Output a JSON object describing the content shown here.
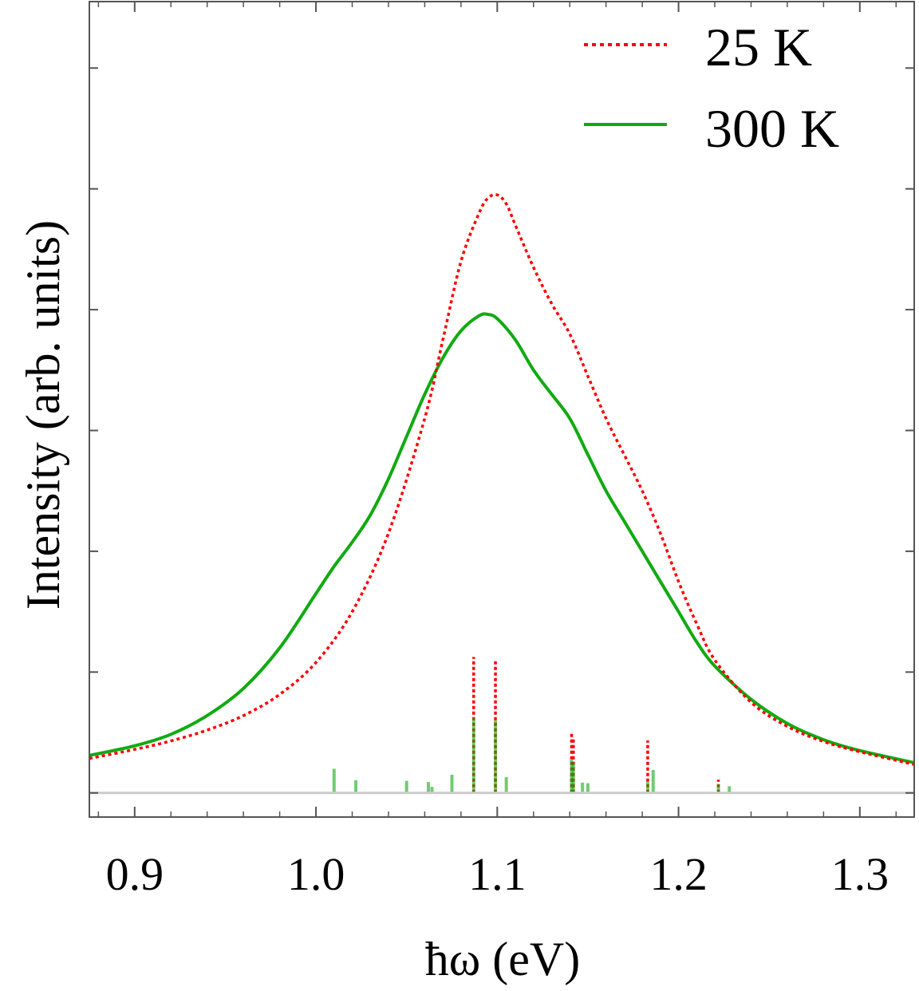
{
  "chart_data": {
    "type": "line",
    "title": "",
    "xlabel": "ħω (eV)",
    "ylabel": "Intensity (arb. units)",
    "xlim": [
      0.875,
      1.33
    ],
    "ylim": [
      -0.04,
      1.31
    ],
    "x_ticks": [
      0.9,
      1.0,
      1.1,
      1.2,
      1.3
    ],
    "x_tick_labels": [
      "0.9",
      "1.0",
      "1.1",
      "1.2",
      "1.3"
    ],
    "legend_position": "top-right",
    "series": [
      {
        "name": "25 K",
        "color": "#ff0000",
        "style": "dotted",
        "x": [
          0.875,
          0.9,
          0.92,
          0.94,
          0.96,
          0.98,
          1.0,
          1.02,
          1.04,
          1.06,
          1.07,
          1.08,
          1.09,
          1.095,
          1.1,
          1.105,
          1.11,
          1.12,
          1.13,
          1.14,
          1.15,
          1.16,
          1.17,
          1.18,
          1.19,
          1.2,
          1.21,
          1.22,
          1.24,
          1.26,
          1.28,
          1.3,
          1.33
        ],
        "values": [
          0.057,
          0.072,
          0.086,
          0.104,
          0.128,
          0.163,
          0.216,
          0.3,
          0.43,
          0.62,
          0.75,
          0.88,
          0.96,
          0.985,
          0.99,
          0.975,
          0.94,
          0.87,
          0.81,
          0.76,
          0.69,
          0.62,
          0.56,
          0.5,
          0.43,
          0.35,
          0.28,
          0.22,
          0.15,
          0.11,
          0.085,
          0.068,
          0.047
        ]
      },
      {
        "name": "300 K",
        "color": "#11aa11",
        "style": "solid",
        "x": [
          0.875,
          0.9,
          0.92,
          0.94,
          0.96,
          0.98,
          1.0,
          1.01,
          1.02,
          1.03,
          1.04,
          1.05,
          1.06,
          1.07,
          1.08,
          1.09,
          1.095,
          1.1,
          1.11,
          1.12,
          1.13,
          1.14,
          1.15,
          1.16,
          1.17,
          1.18,
          1.19,
          1.2,
          1.21,
          1.22,
          1.24,
          1.26,
          1.28,
          1.3,
          1.33
        ],
        "values": [
          0.062,
          0.078,
          0.097,
          0.128,
          0.173,
          0.24,
          0.33,
          0.375,
          0.415,
          0.46,
          0.52,
          0.59,
          0.66,
          0.72,
          0.765,
          0.79,
          0.792,
          0.785,
          0.75,
          0.7,
          0.66,
          0.62,
          0.56,
          0.5,
          0.45,
          0.4,
          0.35,
          0.3,
          0.25,
          0.21,
          0.155,
          0.115,
          0.088,
          0.07,
          0.05
        ]
      }
    ],
    "stick_spectrum": {
      "baseline": 0.0,
      "sticks_25K": [
        {
          "x": 1.087,
          "h": 0.225
        },
        {
          "x": 1.099,
          "h": 0.218
        },
        {
          "x": 1.141,
          "h": 0.098
        },
        {
          "x": 1.142,
          "h": 0.09
        },
        {
          "x": 1.183,
          "h": 0.087
        },
        {
          "x": 1.222,
          "h": 0.022
        }
      ],
      "sticks_300K": [
        {
          "x": 1.01,
          "h": 0.04
        },
        {
          "x": 1.022,
          "h": 0.021
        },
        {
          "x": 1.05,
          "h": 0.02
        },
        {
          "x": 1.062,
          "h": 0.018
        },
        {
          "x": 1.064,
          "h": 0.01
        },
        {
          "x": 1.075,
          "h": 0.03
        },
        {
          "x": 1.087,
          "h": 0.124
        },
        {
          "x": 1.099,
          "h": 0.12
        },
        {
          "x": 1.105,
          "h": 0.026
        },
        {
          "x": 1.141,
          "h": 0.055
        },
        {
          "x": 1.142,
          "h": 0.049
        },
        {
          "x": 1.147,
          "h": 0.017
        },
        {
          "x": 1.15,
          "h": 0.016
        },
        {
          "x": 1.183,
          "h": 0.018
        },
        {
          "x": 1.186,
          "h": 0.038
        },
        {
          "x": 1.222,
          "h": 0.014
        },
        {
          "x": 1.228,
          "h": 0.011
        }
      ]
    },
    "legend_items": [
      "25 K",
      "300 K"
    ]
  }
}
